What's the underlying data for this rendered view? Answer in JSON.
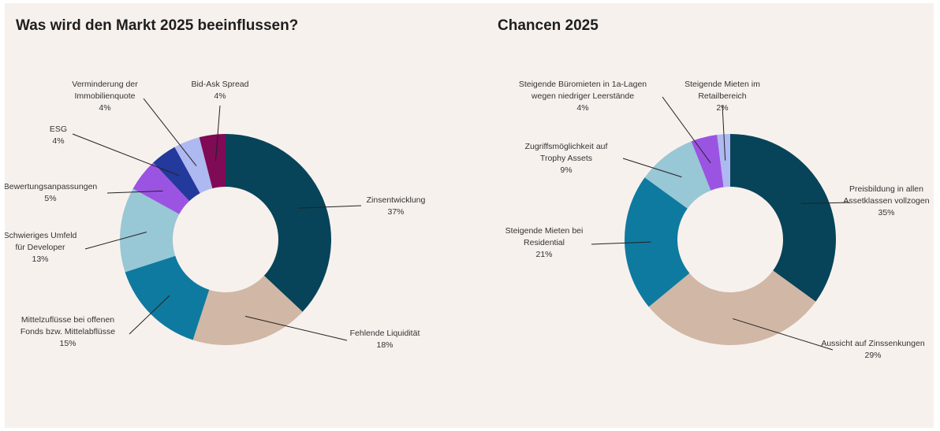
{
  "chart_data": [
    {
      "type": "pie",
      "title": "Was wird den Markt 2025 beeinflussen?",
      "slices": [
        {
          "label": [
            "Zinsentwicklung"
          ],
          "value": 37,
          "value_label": "37%",
          "color": "#07445a"
        },
        {
          "label": [
            "Fehlende Liquidität"
          ],
          "value": 18,
          "value_label": "18%",
          "color": "#d1b7a5"
        },
        {
          "label": [
            "Mittelzuflüsse bei offenen",
            "Fonds bzw. Mittelabflüsse"
          ],
          "value": 15,
          "value_label": "15%",
          "color": "#0e7a9f"
        },
        {
          "label": [
            "Schwieriges Umfeld",
            "für Developer"
          ],
          "value": 13,
          "value_label": "13%",
          "color": "#98c7d5"
        },
        {
          "label": [
            "Bewertungsanpassungen"
          ],
          "value": 5,
          "value_label": "5%",
          "color": "#9b54e2"
        },
        {
          "label": [
            "ESG"
          ],
          "value": 4,
          "value_label": "4%",
          "color": "#23399b"
        },
        {
          "label": [
            "Verminderung der",
            "Immobilienquote"
          ],
          "value": 4,
          "value_label": "4%",
          "color": "#aeb9f1"
        },
        {
          "label": [
            "Bid-Ask Spread"
          ],
          "value": 4,
          "value_label": "4%",
          "color": "#7f0a55"
        }
      ]
    },
    {
      "type": "pie",
      "title": "Chancen 2025",
      "slices": [
        {
          "label": [
            "Preisbildung in allen",
            "Assetklassen vollzogen"
          ],
          "value": 35,
          "value_label": "35%",
          "color": "#07445a"
        },
        {
          "label": [
            "Aussicht auf Zinssenkungen"
          ],
          "value": 29,
          "value_label": "29%",
          "color": "#d1b7a5"
        },
        {
          "label": [
            "Steigende Mieten bei",
            "Residential"
          ],
          "value": 21,
          "value_label": "21%",
          "color": "#0e7a9f"
        },
        {
          "label": [
            "Zugriffsmöglichkeit auf",
            "Trophy Assets"
          ],
          "value": 9,
          "value_label": "9%",
          "color": "#98c7d5"
        },
        {
          "label": [
            "Steigende Büromieten in 1a-Lagen",
            "wegen niedriger Leerstände"
          ],
          "value": 4,
          "value_label": "4%",
          "color": "#9b54e2"
        },
        {
          "label": [
            "Steigende Mieten im",
            "Retailbereich"
          ],
          "value": 2,
          "value_label": "2%",
          "color": "#aeb9f1"
        }
      ]
    }
  ]
}
